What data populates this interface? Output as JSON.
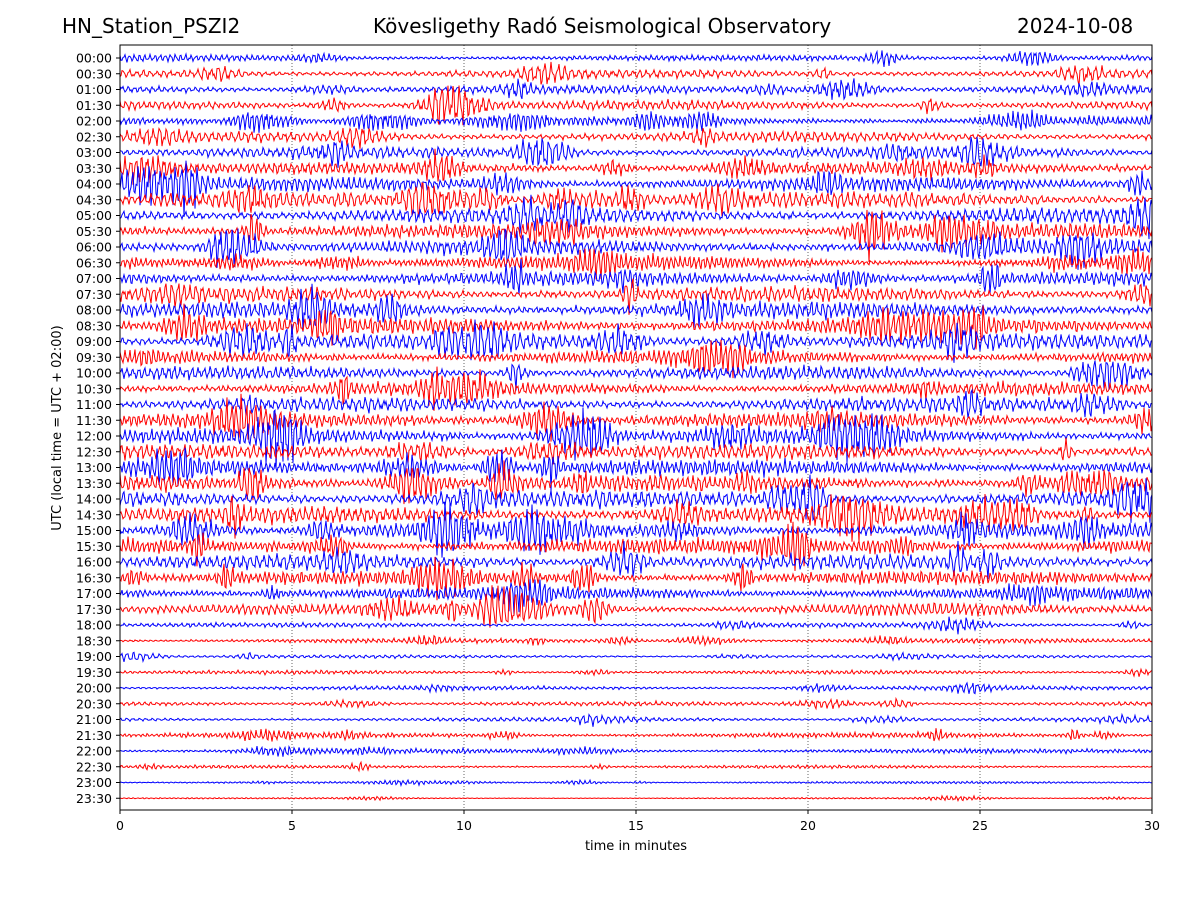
{
  "header": {
    "station": "HN_Station_PSZI2",
    "observatory": "Kövesligethy Radó Seismological Observatory",
    "date": "2024-10-08"
  },
  "chart_data": {
    "type": "line",
    "xlabel": "time in minutes",
    "ylabel": "UTC (local time = UTC + 02:00)",
    "xlim": [
      0,
      30
    ],
    "xticks": [
      0,
      5,
      10,
      15,
      20,
      25,
      30
    ],
    "row_labels": [
      "00:00",
      "00:30",
      "01:00",
      "01:30",
      "02:00",
      "02:30",
      "03:00",
      "03:30",
      "04:00",
      "04:30",
      "05:00",
      "05:30",
      "06:00",
      "06:30",
      "07:00",
      "07:30",
      "08:00",
      "08:30",
      "09:00",
      "09:30",
      "10:00",
      "10:30",
      "11:00",
      "11:30",
      "12:00",
      "12:30",
      "13:00",
      "13:30",
      "14:00",
      "14:30",
      "15:00",
      "15:30",
      "16:00",
      "16:30",
      "17:00",
      "17:30",
      "18:00",
      "18:30",
      "19:00",
      "19:30",
      "20:00",
      "20:30",
      "21:00",
      "21:30",
      "22:00",
      "22:30",
      "23:00",
      "23:30"
    ],
    "row_amplitude": [
      0.8,
      0.9,
      0.9,
      1.0,
      1.0,
      1.1,
      1.2,
      1.3,
      1.5,
      1.6,
      1.7,
      1.6,
      1.6,
      1.5,
      1.5,
      1.6,
      1.7,
      1.8,
      1.7,
      1.5,
      1.4,
      1.4,
      1.5,
      1.6,
      1.6,
      1.6,
      1.7,
      1.7,
      1.8,
      1.8,
      1.7,
      1.6,
      1.6,
      1.5,
      1.4,
      1.3,
      0.5,
      0.5,
      0.35,
      0.4,
      0.45,
      0.45,
      0.45,
      0.55,
      0.5,
      0.35,
      0.25,
      0.15
    ],
    "colors": [
      "#0000ff",
      "#ff0000"
    ],
    "grid": "vertical dotted at major x ticks"
  }
}
